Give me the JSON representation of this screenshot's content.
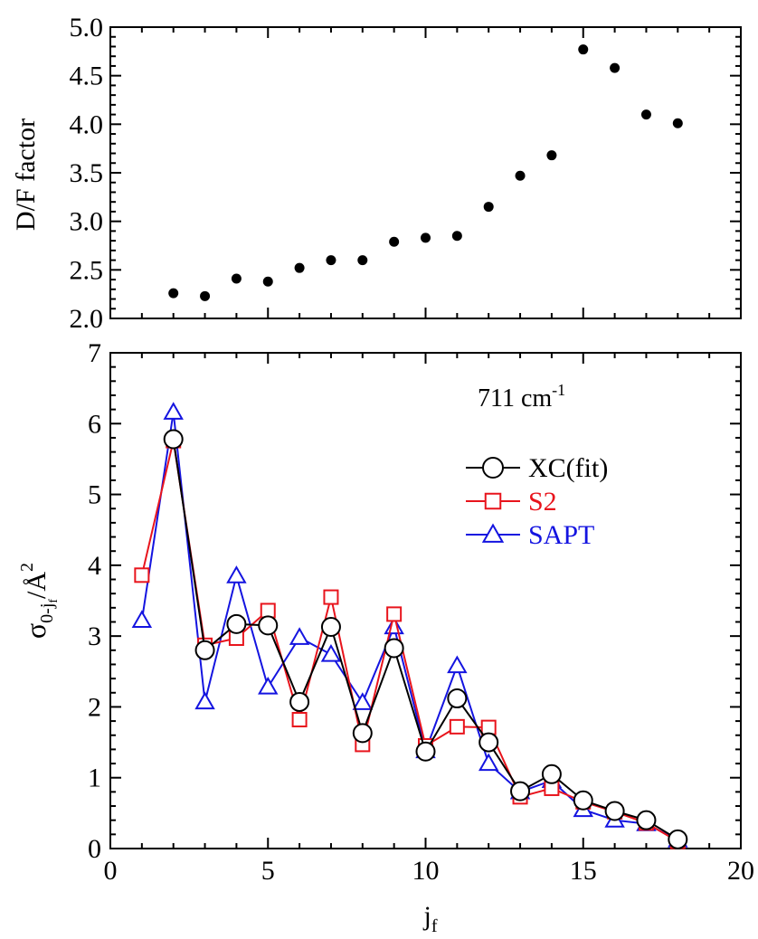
{
  "chart_data": [
    {
      "type": "scatter",
      "panel": "top",
      "xlabel": "",
      "ylabel": "D/F factor",
      "xlim": [
        0,
        20
      ],
      "ylim": [
        2.0,
        5.0
      ],
      "x_ticks": [
        0,
        5,
        10,
        15,
        20
      ],
      "y_tick_labels": [
        "2.0",
        "2.5",
        "3.0",
        "3.5",
        "4.0",
        "4.5",
        "5.0"
      ],
      "grid": false,
      "series": [
        {
          "color": "#000000",
          "marker": "filled-circle",
          "x": [
            2,
            3,
            4,
            5,
            6,
            7,
            8,
            9,
            10,
            11,
            12,
            13,
            14,
            15,
            16,
            17,
            18
          ],
          "y": [
            2.26,
            2.23,
            2.41,
            2.38,
            2.52,
            2.6,
            2.6,
            2.79,
            2.83,
            2.85,
            3.15,
            3.47,
            3.68,
            4.77,
            4.58,
            4.1,
            4.01
          ]
        }
      ]
    },
    {
      "type": "line",
      "panel": "bottom",
      "xlabel": "j",
      "xlabel_sub": "f",
      "ylabel_sigma": "σ",
      "ylabel_sub": "0-j",
      "ylabel_subsub": "f",
      "ylabel_unit": "/Å",
      "ylabel_sup": "2",
      "xlim": [
        0,
        20
      ],
      "ylim": [
        0,
        7
      ],
      "x_tick_labels": [
        "0",
        "5",
        "10",
        "15",
        "20"
      ],
      "y_tick_labels": [
        "0",
        "1",
        "2",
        "3",
        "4",
        "5",
        "6",
        "7"
      ],
      "grid": false,
      "annotation": {
        "text": "711 cm",
        "sup": "-1"
      },
      "legend_position": "upper-right",
      "series": [
        {
          "name": "XC(fit)",
          "color": "#000000",
          "marker": "circle",
          "x": [
            2,
            3,
            4,
            5,
            6,
            7,
            8,
            9,
            10,
            11,
            12,
            13,
            14,
            15,
            16,
            17,
            18
          ],
          "y": [
            5.78,
            2.8,
            3.17,
            3.15,
            2.07,
            3.13,
            1.63,
            2.83,
            1.37,
            2.12,
            1.5,
            0.81,
            1.05,
            0.68,
            0.53,
            0.4,
            0.13
          ]
        },
        {
          "name": "S2",
          "color": "#e8141c",
          "marker": "square",
          "x": [
            1,
            2,
            3,
            4,
            5,
            6,
            7,
            8,
            9,
            10,
            11,
            12,
            13,
            14,
            15,
            16,
            17,
            18
          ],
          "y": [
            3.86,
            5.76,
            2.87,
            2.97,
            3.36,
            1.82,
            3.55,
            1.47,
            3.31,
            1.45,
            1.72,
            1.71,
            0.73,
            0.85,
            0.66,
            0.52,
            0.36,
            0.1
          ]
        },
        {
          "name": "SAPT",
          "color": "#1414e0",
          "marker": "triangle",
          "x": [
            1,
            2,
            3,
            4,
            5,
            6,
            7,
            8,
            9,
            10,
            11,
            12,
            13,
            14,
            15,
            16,
            17,
            18
          ],
          "y": [
            3.22,
            6.16,
            2.07,
            3.85,
            2.28,
            2.98,
            2.74,
            2.06,
            3.13,
            1.38,
            2.58,
            1.2,
            0.8,
            0.96,
            0.55,
            0.4,
            0.35,
            0.12
          ]
        }
      ]
    }
  ]
}
